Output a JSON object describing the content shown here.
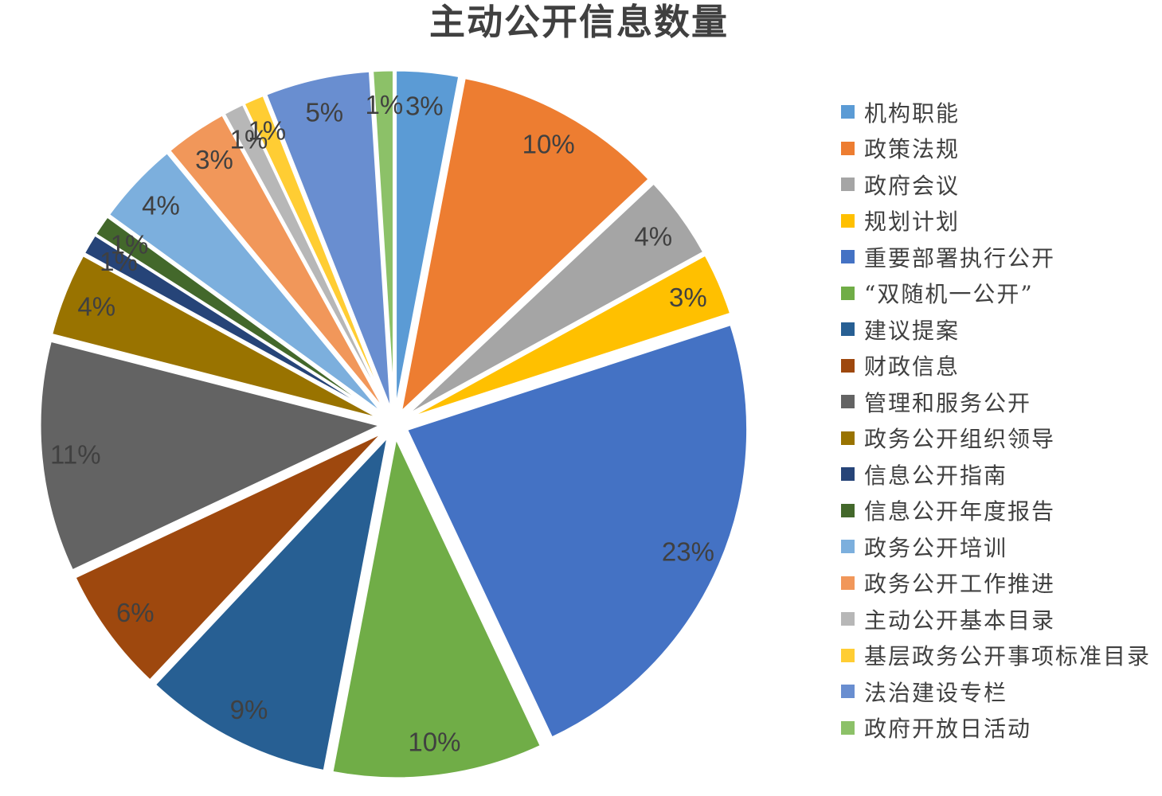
{
  "page": {
    "background": "#FFFFFF",
    "title_color": "#404040",
    "label_color": "#404040",
    "slice_border_color": "#FFFFFF"
  },
  "chart_data": {
    "type": "pie",
    "title": "主动公开信息数量",
    "legend_position": "right",
    "start_angle_deg": 0,
    "direction": "clockwise",
    "label_format": "percent",
    "exploded": true,
    "slices": [
      {
        "label": "机构职能",
        "value": 3,
        "data_label": "3%",
        "color": "#5B9BD5"
      },
      {
        "label": "政策法规",
        "value": 10,
        "data_label": "10%",
        "color": "#ED7D31"
      },
      {
        "label": "政府会议",
        "value": 4,
        "data_label": "4%",
        "color": "#A5A5A5"
      },
      {
        "label": "规划计划",
        "value": 3,
        "data_label": "3%",
        "color": "#FFC000"
      },
      {
        "label": "重要部署执行公开",
        "value": 23,
        "data_label": "23%",
        "color": "#4472C4"
      },
      {
        "label": "“双随机一公开”",
        "value": 10,
        "data_label": "10%",
        "color": "#70AD47"
      },
      {
        "label": "建议提案",
        "value": 9,
        "data_label": "9%",
        "color": "#275F93"
      },
      {
        "label": "财政信息",
        "value": 6,
        "data_label": "6%",
        "color": "#9E480E"
      },
      {
        "label": "管理和服务公开",
        "value": 11,
        "data_label": "11%",
        "color": "#636363"
      },
      {
        "label": "政务公开组织领导",
        "value": 4,
        "data_label": "4%",
        "color": "#997300"
      },
      {
        "label": "信息公开指南",
        "value": 1,
        "data_label": "1%",
        "color": "#264478"
      },
      {
        "label": "信息公开年度报告",
        "value": 1,
        "data_label": "1%",
        "color": "#43682B"
      },
      {
        "label": "政务公开培训",
        "value": 4,
        "data_label": "4%",
        "color": "#7CAFDD"
      },
      {
        "label": "政务公开工作推进",
        "value": 3,
        "data_label": "3%",
        "color": "#F1975A"
      },
      {
        "label": "主动公开基本目录",
        "value": 1,
        "data_label": "1%",
        "color": "#B7B7B7"
      },
      {
        "label": "基层政务公开事项标准目录",
        "value": 1,
        "data_label": "1%",
        "color": "#FFCD33"
      },
      {
        "label": "法治建设专栏",
        "value": 5,
        "data_label": "5%",
        "color": "#698ED0"
      },
      {
        "label": "政府开放日活动",
        "value": 1,
        "data_label": "1%",
        "color": "#8CC168"
      }
    ]
  }
}
